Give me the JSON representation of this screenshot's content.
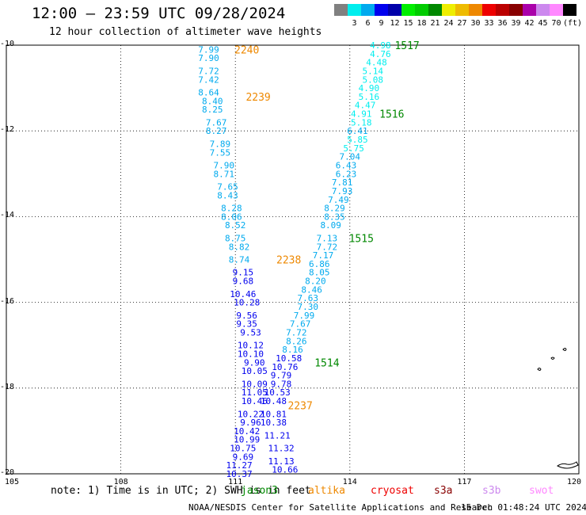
{
  "header": {
    "title": "12:00 — 23:59 UTC 09/28/2024",
    "subtitle": "12 hour collection of altimeter wave heights"
  },
  "legend": {
    "swatches": [
      {
        "color": "#808080",
        "label": ""
      },
      {
        "color": "#00eeee",
        "label": "3"
      },
      {
        "color": "#00aaee",
        "label": "6"
      },
      {
        "color": "#0000ee",
        "label": "9"
      },
      {
        "color": "#0000aa",
        "label": "12"
      },
      {
        "color": "#00ee00",
        "label": "15"
      },
      {
        "color": "#00cc00",
        "label": "18"
      },
      {
        "color": "#008800",
        "label": "21"
      },
      {
        "color": "#eeee00",
        "label": "24"
      },
      {
        "color": "#eebb00",
        "label": "27"
      },
      {
        "color": "#ee8800",
        "label": "30"
      },
      {
        "color": "#ee0000",
        "label": "33"
      },
      {
        "color": "#bb0000",
        "label": "36"
      },
      {
        "color": "#880000",
        "label": "39"
      },
      {
        "color": "#aa00aa",
        "label": "42"
      },
      {
        "color": "#cc88ee",
        "label": "45"
      },
      {
        "color": "#ff88ff",
        "label": "70"
      },
      {
        "color": "#000000",
        "label": "(ft)"
      }
    ]
  },
  "map": {
    "lon_range": [
      105,
      120
    ],
    "lat_range": [
      -20,
      -10
    ],
    "lat_ticks": [
      {
        "value": -10,
        "label": "-10"
      },
      {
        "value": -12,
        "label": "-12"
      },
      {
        "value": -14,
        "label": "-14"
      },
      {
        "value": -16,
        "label": "-16"
      },
      {
        "value": -18,
        "label": "-18"
      },
      {
        "value": -20,
        "label": "-20"
      }
    ],
    "lon_ticks": [
      {
        "value": 105,
        "label": "105"
      },
      {
        "value": 108,
        "label": "108"
      },
      {
        "value": 111,
        "label": "111"
      },
      {
        "value": 114,
        "label": "114"
      },
      {
        "value": 117,
        "label": "117"
      },
      {
        "value": 120,
        "label": "120"
      }
    ],
    "tracks": [
      {
        "name": "altika-pass",
        "readings": [
          {
            "lon": 110.3,
            "lat": -10.1,
            "v": "7.99",
            "c": "#00aaee"
          },
          {
            "lon": 110.3,
            "lat": -10.3,
            "v": "7.90",
            "c": "#00aaee"
          },
          {
            "lon": 110.3,
            "lat": -10.6,
            "v": "7.72",
            "c": "#00aaee"
          },
          {
            "lon": 110.3,
            "lat": -10.8,
            "v": "7.42",
            "c": "#00aaee"
          },
          {
            "lon": 110.3,
            "lat": -11.1,
            "v": "8.64",
            "c": "#00aaee"
          },
          {
            "lon": 110.4,
            "lat": -11.3,
            "v": "8.40",
            "c": "#00aaee"
          },
          {
            "lon": 110.4,
            "lat": -11.5,
            "v": "8.25",
            "c": "#00aaee"
          },
          {
            "lon": 110.5,
            "lat": -11.8,
            "v": "7.67",
            "c": "#00aaee"
          },
          {
            "lon": 110.5,
            "lat": -12.0,
            "v": "8.27",
            "c": "#00aaee"
          },
          {
            "lon": 110.6,
            "lat": -12.3,
            "v": "7.89",
            "c": "#00aaee"
          },
          {
            "lon": 110.6,
            "lat": -12.5,
            "v": "7.55",
            "c": "#00aaee"
          },
          {
            "lon": 110.7,
            "lat": -12.8,
            "v": "7.90",
            "c": "#00aaee"
          },
          {
            "lon": 110.7,
            "lat": -13.0,
            "v": "8.71",
            "c": "#00aaee"
          },
          {
            "lon": 110.8,
            "lat": -13.3,
            "v": "7.65",
            "c": "#00aaee"
          },
          {
            "lon": 110.8,
            "lat": -13.5,
            "v": "8.43",
            "c": "#00aaee"
          },
          {
            "lon": 110.9,
            "lat": -13.8,
            "v": "8.28",
            "c": "#00aaee"
          },
          {
            "lon": 110.9,
            "lat": -14.0,
            "v": "8.06",
            "c": "#00aaee"
          },
          {
            "lon": 111.0,
            "lat": -14.2,
            "v": "8.52",
            "c": "#00aaee"
          },
          {
            "lon": 111.0,
            "lat": -14.5,
            "v": "8.75",
            "c": "#00aaee"
          },
          {
            "lon": 111.1,
            "lat": -14.7,
            "v": "8.82",
            "c": "#00aaee"
          },
          {
            "lon": 111.1,
            "lat": -15.0,
            "v": "8.74",
            "c": "#00aaee"
          },
          {
            "lon": 111.2,
            "lat": -15.3,
            "v": "9.15",
            "c": "#0000ee"
          },
          {
            "lon": 111.2,
            "lat": -15.5,
            "v": "9.68",
            "c": "#0000ee"
          },
          {
            "lon": 111.2,
            "lat": -15.8,
            "v": "10.46",
            "c": "#0000ee"
          },
          {
            "lon": 111.3,
            "lat": -16.0,
            "v": "10.28",
            "c": "#0000ee"
          },
          {
            "lon": 111.3,
            "lat": -16.3,
            "v": "9.56",
            "c": "#0000ee"
          },
          {
            "lon": 111.3,
            "lat": -16.5,
            "v": "9.35",
            "c": "#0000ee"
          },
          {
            "lon": 111.4,
            "lat": -16.7,
            "v": "9.53",
            "c": "#0000ee"
          },
          {
            "lon": 111.4,
            "lat": -17.0,
            "v": "10.12",
            "c": "#0000ee"
          },
          {
            "lon": 111.4,
            "lat": -17.2,
            "v": "10.10",
            "c": "#0000ee"
          },
          {
            "lon": 111.5,
            "lat": -17.4,
            "v": "9.90",
            "c": "#0000ee"
          },
          {
            "lon": 111.5,
            "lat": -17.6,
            "v": "10.05",
            "c": "#0000ee"
          },
          {
            "lon": 111.5,
            "lat": -17.9,
            "v": "10.09",
            "c": "#0000ee"
          },
          {
            "lon": 111.5,
            "lat": -18.1,
            "v": "11.05",
            "c": "#0000ee"
          },
          {
            "lon": 111.5,
            "lat": -18.3,
            "v": "10.46",
            "c": "#0000ee"
          },
          {
            "lon": 111.4,
            "lat": -18.6,
            "v": "10.22",
            "c": "#0000ee"
          },
          {
            "lon": 111.4,
            "lat": -18.8,
            "v": "9.96",
            "c": "#0000ee"
          },
          {
            "lon": 111.3,
            "lat": -19.0,
            "v": "10.42",
            "c": "#0000ee"
          },
          {
            "lon": 111.3,
            "lat": -19.2,
            "v": "10.99",
            "c": "#0000ee"
          },
          {
            "lon": 111.2,
            "lat": -19.4,
            "v": "10.75",
            "c": "#0000ee"
          },
          {
            "lon": 111.2,
            "lat": -19.6,
            "v": "9.69",
            "c": "#0000ee"
          },
          {
            "lon": 111.1,
            "lat": -19.8,
            "v": "11.27",
            "c": "#0000ee"
          },
          {
            "lon": 111.1,
            "lat": -20.0,
            "v": "10.37",
            "c": "#0000ee"
          }
        ]
      },
      {
        "name": "jason-pass",
        "readings": [
          {
            "lon": 114.8,
            "lat": -10.0,
            "v": "4.98",
            "c": "#00eeee"
          },
          {
            "lon": 114.8,
            "lat": -10.2,
            "v": "4.76",
            "c": "#00eeee"
          },
          {
            "lon": 114.7,
            "lat": -10.4,
            "v": "4.48",
            "c": "#00eeee"
          },
          {
            "lon": 114.6,
            "lat": -10.6,
            "v": "5.14",
            "c": "#00eeee"
          },
          {
            "lon": 114.6,
            "lat": -10.8,
            "v": "5.08",
            "c": "#00eeee"
          },
          {
            "lon": 114.5,
            "lat": -11.0,
            "v": "4.90",
            "c": "#00eeee"
          },
          {
            "lon": 114.5,
            "lat": -11.2,
            "v": "5.16",
            "c": "#00eeee"
          },
          {
            "lon": 114.4,
            "lat": -11.4,
            "v": "4.47",
            "c": "#00eeee"
          },
          {
            "lon": 114.3,
            "lat": -11.6,
            "v": "4.91",
            "c": "#00eeee"
          },
          {
            "lon": 114.3,
            "lat": -11.8,
            "v": "5.18",
            "c": "#00eeee"
          },
          {
            "lon": 114.2,
            "lat": -12.0,
            "v": "6.41",
            "c": "#00aaee"
          },
          {
            "lon": 114.2,
            "lat": -12.2,
            "v": "5.85",
            "c": "#00eeee"
          },
          {
            "lon": 114.1,
            "lat": -12.4,
            "v": "5.75",
            "c": "#00eeee"
          },
          {
            "lon": 114.0,
            "lat": -12.6,
            "v": "7.04",
            "c": "#00aaee"
          },
          {
            "lon": 113.9,
            "lat": -12.8,
            "v": "6.43",
            "c": "#00aaee"
          },
          {
            "lon": 113.9,
            "lat": -13.0,
            "v": "6.23",
            "c": "#00aaee"
          },
          {
            "lon": 113.8,
            "lat": -13.2,
            "v": "7.81",
            "c": "#00aaee"
          },
          {
            "lon": 113.8,
            "lat": -13.4,
            "v": "7.93",
            "c": "#00aaee"
          },
          {
            "lon": 113.7,
            "lat": -13.6,
            "v": "7.49",
            "c": "#00aaee"
          },
          {
            "lon": 113.6,
            "lat": -13.8,
            "v": "8.29",
            "c": "#00aaee"
          },
          {
            "lon": 113.6,
            "lat": -14.0,
            "v": "8.35",
            "c": "#00aaee"
          },
          {
            "lon": 113.5,
            "lat": -14.2,
            "v": "8.09",
            "c": "#00aaee"
          },
          {
            "lon": 113.4,
            "lat": -14.5,
            "v": "7.13",
            "c": "#00aaee"
          },
          {
            "lon": 113.4,
            "lat": -14.7,
            "v": "7.72",
            "c": "#00aaee"
          },
          {
            "lon": 113.3,
            "lat": -14.9,
            "v": "7.17",
            "c": "#00aaee"
          },
          {
            "lon": 113.2,
            "lat": -15.1,
            "v": "6.86",
            "c": "#00aaee"
          },
          {
            "lon": 113.2,
            "lat": -15.3,
            "v": "8.05",
            "c": "#00aaee"
          },
          {
            "lon": 113.1,
            "lat": -15.5,
            "v": "8.20",
            "c": "#00aaee"
          },
          {
            "lon": 113.0,
            "lat": -15.7,
            "v": "8.46",
            "c": "#00aaee"
          },
          {
            "lon": 112.9,
            "lat": -15.9,
            "v": "7.63",
            "c": "#00aaee"
          },
          {
            "lon": 112.9,
            "lat": -16.1,
            "v": "7.30",
            "c": "#00aaee"
          },
          {
            "lon": 112.8,
            "lat": -16.3,
            "v": "7.99",
            "c": "#00aaee"
          },
          {
            "lon": 112.7,
            "lat": -16.5,
            "v": "7.67",
            "c": "#00aaee"
          },
          {
            "lon": 112.6,
            "lat": -16.7,
            "v": "7.72",
            "c": "#00aaee"
          },
          {
            "lon": 112.6,
            "lat": -16.9,
            "v": "8.26",
            "c": "#00aaee"
          },
          {
            "lon": 112.5,
            "lat": -17.1,
            "v": "8.16",
            "c": "#00aaee"
          },
          {
            "lon": 112.4,
            "lat": -17.3,
            "v": "10.58",
            "c": "#0000ee"
          },
          {
            "lon": 112.3,
            "lat": -17.5,
            "v": "10.76",
            "c": "#0000ee"
          },
          {
            "lon": 112.2,
            "lat": -17.7,
            "v": "9.79",
            "c": "#0000ee"
          },
          {
            "lon": 112.2,
            "lat": -17.9,
            "v": "9.78",
            "c": "#0000ee"
          },
          {
            "lon": 112.1,
            "lat": -18.1,
            "v": "10.53",
            "c": "#0000ee"
          },
          {
            "lon": 112.0,
            "lat": -18.3,
            "v": "10.48",
            "c": "#0000ee"
          },
          {
            "lon": 112.0,
            "lat": -18.6,
            "v": "10.81",
            "c": "#0000ee"
          },
          {
            "lon": 112.0,
            "lat": -18.8,
            "v": "10.38",
            "c": "#0000ee"
          },
          {
            "lon": 112.1,
            "lat": -19.1,
            "v": "11.21",
            "c": "#0000ee"
          },
          {
            "lon": 112.2,
            "lat": -19.4,
            "v": "11.32",
            "c": "#0000ee"
          },
          {
            "lon": 112.2,
            "lat": -19.7,
            "v": "11.13",
            "c": "#0000ee"
          },
          {
            "lon": 112.3,
            "lat": -19.9,
            "v": "10.66",
            "c": "#0000ee"
          }
        ]
      }
    ],
    "time_labels": [
      {
        "lon": 111.3,
        "lat": -10.1,
        "t": "2240",
        "c": "#ee8800"
      },
      {
        "lon": 111.6,
        "lat": -11.2,
        "t": "2239",
        "c": "#ee8800"
      },
      {
        "lon": 112.4,
        "lat": -15.0,
        "t": "2238",
        "c": "#ee8800"
      },
      {
        "lon": 112.7,
        "lat": -18.4,
        "t": "2237",
        "c": "#ee8800"
      },
      {
        "lon": 115.5,
        "lat": -10.0,
        "t": "1517",
        "c": "#008800"
      },
      {
        "lon": 115.1,
        "lat": -11.6,
        "t": "1516",
        "c": "#008800"
      },
      {
        "lon": 114.3,
        "lat": -14.5,
        "t": "1515",
        "c": "#008800"
      },
      {
        "lon": 113.4,
        "lat": -17.4,
        "t": "1514",
        "c": "#008800"
      }
    ],
    "land_color": "#000000"
  },
  "footer": {
    "note": "note: 1) Time is in UTC; 2) SWH is in feet",
    "satellites": [
      {
        "name": "jason3",
        "color": "#008800"
      },
      {
        "name": "altika",
        "color": "#ee8800"
      },
      {
        "name": "cryosat",
        "color": "#ee0000"
      },
      {
        "name": "s3a",
        "color": "#880000"
      },
      {
        "name": "s3b",
        "color": "#cc88ee"
      },
      {
        "name": "swot",
        "color": "#ff88ff"
      }
    ],
    "credit": "NOAA/NESDIS Center for Satellite Applications and Research",
    "timestamp": "15 Dec 01:48:24 UTC 2024"
  }
}
